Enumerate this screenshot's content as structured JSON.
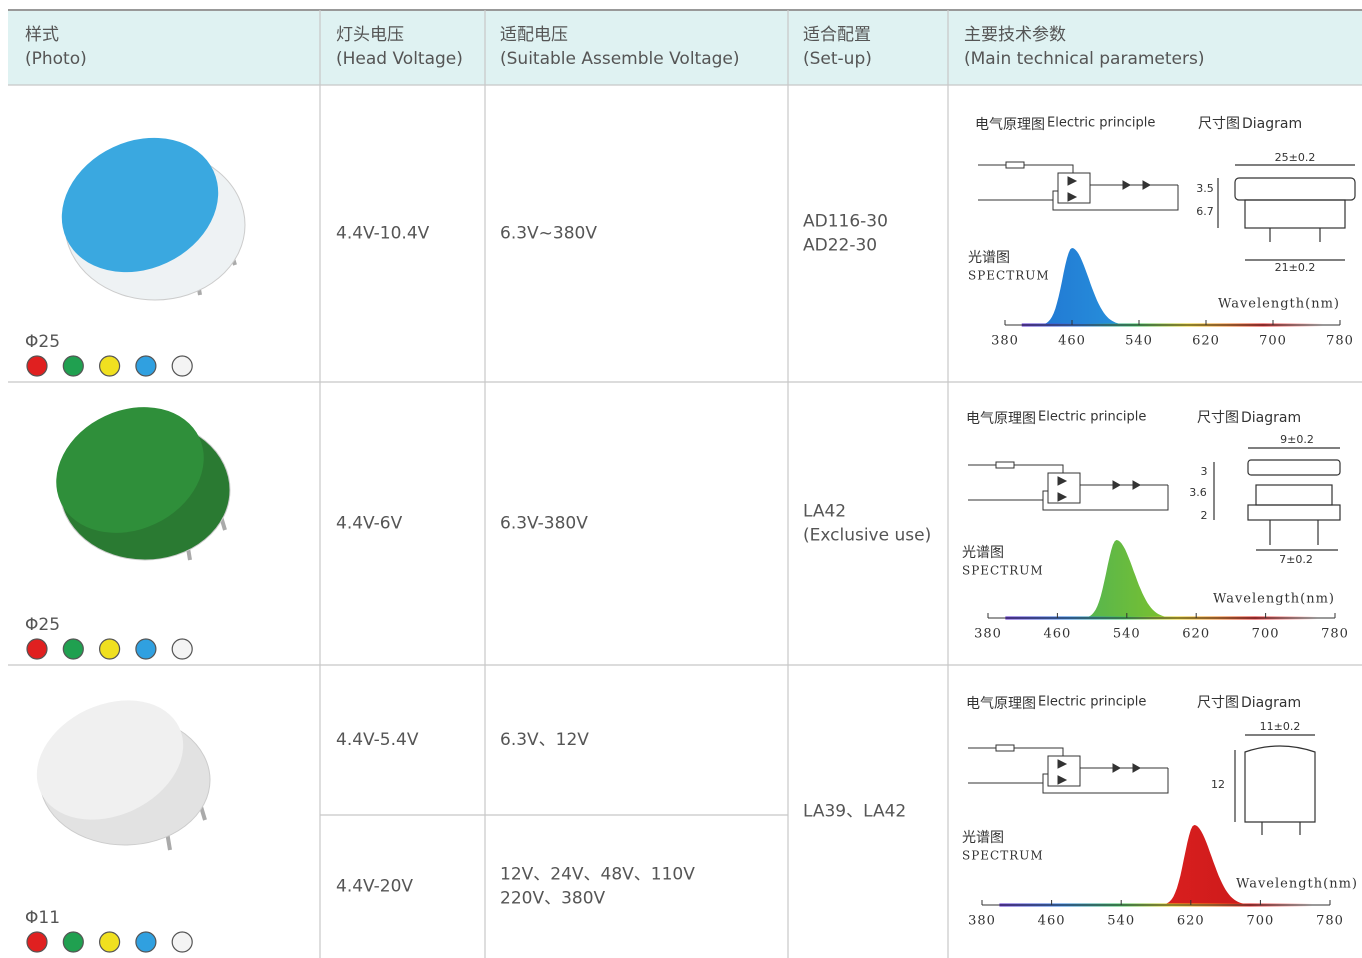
{
  "table": {
    "header": [
      [
        "样式",
        "(Photo)"
      ],
      [
        "灯头电压",
        "(Head Voltage)"
      ],
      [
        "适配电压",
        "(Suitable Assemble Voltage)"
      ],
      [
        "适合配置",
        "(Set-up)"
      ],
      [
        "主要技术参数",
        "(Main technical parameters)"
      ]
    ],
    "rows": [
      {
        "size": "Φ25",
        "head_voltage": [
          "4.4V-10.4V"
        ],
        "assemble_voltage": [
          [
            "6.3V~380V"
          ]
        ],
        "setup": [
          "AD116-30",
          "AD22-30"
        ],
        "params": {
          "electric_cn": "电气原理图",
          "electric_en": "Electric principle",
          "diagram_cn": "尺寸图",
          "diagram_en": "Diagram",
          "dims": [
            "25±0.2",
            "3.5",
            "6.7",
            "21±0.2"
          ],
          "spectrum_cn": "光谱图",
          "spectrum_en": "SPECTRUM",
          "wavelength": "Wavelength(nm)",
          "ticks": [
            380,
            460,
            540,
            620,
            700,
            780
          ]
        }
      },
      {
        "size": "Φ25",
        "head_voltage": [
          "4.4V-6V"
        ],
        "assemble_voltage": [
          [
            "6.3V-380V"
          ]
        ],
        "setup": [
          "LA42",
          "(Exclusive use)"
        ],
        "params": {
          "electric_cn": "电气原理图",
          "electric_en": "Electric principle",
          "diagram_cn": "尺寸图",
          "diagram_en": "Diagram",
          "dims": [
            "9±0.2",
            "3",
            "3.6",
            "2",
            "7±0.2"
          ],
          "spectrum_cn": "光谱图",
          "spectrum_en": "SPECTRUM",
          "wavelength": "Wavelength(nm)",
          "ticks": [
            380,
            460,
            540,
            620,
            700,
            780
          ]
        }
      },
      {
        "size": "Φ11",
        "head_voltage": [
          "4.4V-5.4V",
          "4.4V-20V"
        ],
        "assemble_voltage": [
          [
            "6.3V、12V"
          ],
          [
            "12V、24V、48V、110V",
            "220V、380V"
          ]
        ],
        "setup": [
          "LA39、LA42"
        ],
        "params": {
          "electric_cn": "电气原理图",
          "electric_en": "Electric principle",
          "diagram_cn": "尺寸图",
          "diagram_en": "Diagram",
          "dims": [
            "11±0.2",
            "12"
          ],
          "spectrum_cn": "光谱图",
          "spectrum_en": "SPECTRUM",
          "wavelength": "Wavelength(nm)",
          "ticks": [
            380,
            460,
            540,
            620,
            700,
            780
          ]
        }
      }
    ]
  }
}
